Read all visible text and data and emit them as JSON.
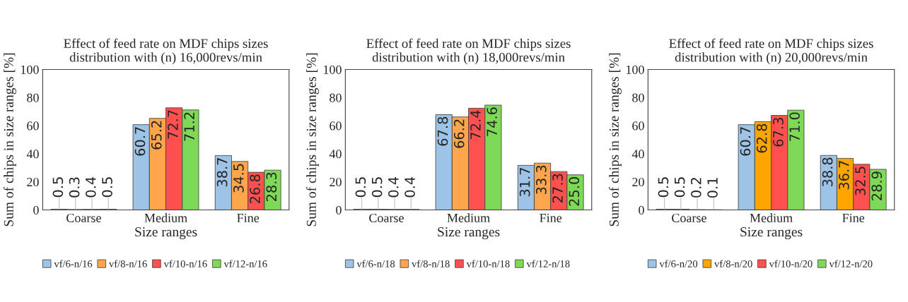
{
  "chart_data": [
    {
      "type": "bar",
      "title": "Effect of feed rate on MDF chips sizes\ndistribution with (n) 16,000revs/min",
      "xlabel": "Size ranges",
      "ylabel": "Sum of chips in size ranges [%]",
      "categories": [
        "Coarse",
        "Medium",
        "Fine"
      ],
      "ylim": [
        0,
        100
      ],
      "yticks": [
        0,
        20,
        40,
        60,
        80,
        100
      ],
      "legend": "bottom",
      "grid": false,
      "series": [
        {
          "name": "vf/6-n/16",
          "color": "#9dc3e6",
          "values": [
            0.5,
            60.7,
            38.7
          ],
          "value_labels": [
            "0.5",
            "60.7",
            "38.7"
          ]
        },
        {
          "name": "vf/8-n/16",
          "color": "#ffa64d",
          "values": [
            0.3,
            65.2,
            34.5
          ],
          "value_labels": [
            "0.3",
            "65.2",
            "34.5"
          ]
        },
        {
          "name": "vf/10-n/16",
          "color": "#ff5050",
          "values": [
            0.4,
            72.7,
            26.8
          ],
          "value_labels": [
            "0.4",
            "72.7",
            "26.8"
          ]
        },
        {
          "name": "vf/12-n/16",
          "color": "#7ed957",
          "values": [
            0.5,
            71.2,
            28.3
          ],
          "value_labels": [
            "0.5",
            "71.2",
            "28.3"
          ]
        }
      ]
    },
    {
      "type": "bar",
      "title": "Effect of feed rate on MDF chips sizes\ndistribution with (n) 18,000revs/min",
      "xlabel": "Size ranges",
      "ylabel": "Sum of chips in size ranges [%]",
      "categories": [
        "Coarse",
        "Medium",
        "Fine"
      ],
      "ylim": [
        0,
        100
      ],
      "yticks": [
        0,
        20,
        40,
        60,
        80,
        100
      ],
      "legend": "bottom",
      "grid": false,
      "series": [
        {
          "name": "vf/6-n/18",
          "color": "#9dc3e6",
          "values": [
            0.5,
            67.8,
            31.7
          ],
          "value_labels": [
            "0.5",
            "67.8",
            "31.7"
          ]
        },
        {
          "name": "vf/8-n/18",
          "color": "#ffa64d",
          "values": [
            0.5,
            66.2,
            33.3
          ],
          "value_labels": [
            "0.5",
            "66.2",
            "33.3"
          ]
        },
        {
          "name": "vf/10-n/18",
          "color": "#ff5050",
          "values": [
            0.4,
            72.4,
            27.3
          ],
          "value_labels": [
            "0.4",
            "72.4",
            "27.3"
          ]
        },
        {
          "name": "vf/12-n/18",
          "color": "#7ed957",
          "values": [
            0.4,
            74.6,
            25.0
          ],
          "value_labels": [
            "0.4",
            "74.6",
            "25.0"
          ]
        }
      ]
    },
    {
      "type": "bar",
      "title": "Effect of feed rate on MDF chips sizes\ndistribution with (n) 20,000revs/min",
      "xlabel": "Size ranges",
      "ylabel": "Sum of chips in size ranges [%]",
      "categories": [
        "Coarse",
        "Medium",
        "Fine"
      ],
      "ylim": [
        0,
        100
      ],
      "yticks": [
        0,
        20,
        40,
        60,
        80,
        100
      ],
      "legend": "bottom",
      "grid": false,
      "series": [
        {
          "name": "vf/6-n/20",
          "color": "#9dc3e6",
          "values": [
            0.5,
            60.7,
            38.8
          ],
          "value_labels": [
            "0.5",
            "60.7",
            "38.8"
          ]
        },
        {
          "name": "vf/8-n/20",
          "color": "#ffa500",
          "values": [
            0.5,
            62.8,
            36.7
          ],
          "value_labels": [
            "0.5",
            "62.8",
            "36.7"
          ]
        },
        {
          "name": "vf/10-n/20",
          "color": "#ff5050",
          "values": [
            0.2,
            67.3,
            32.5
          ],
          "value_labels": [
            "0.2",
            "67.3",
            "32.5"
          ]
        },
        {
          "name": "vf/12-n/20",
          "color": "#7ed957",
          "values": [
            0.1,
            71.0,
            28.9
          ],
          "value_labels": [
            "0.1",
            "71.0",
            "28.9"
          ]
        }
      ]
    }
  ]
}
